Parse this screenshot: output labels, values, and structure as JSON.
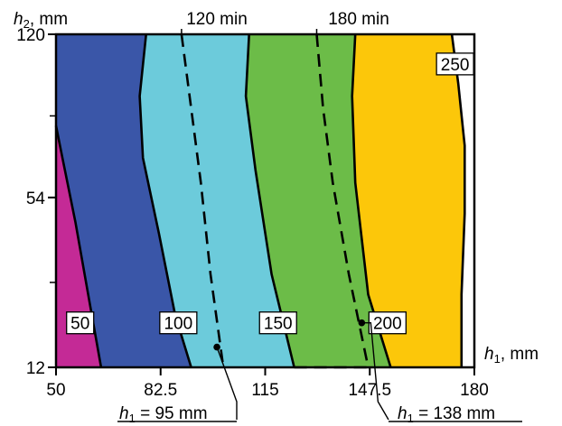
{
  "chart_data": {
    "type": "contour",
    "xlabel": {
      "var": "h",
      "sub": "1",
      "unit": ", mm"
    },
    "ylabel": {
      "var": "h",
      "sub": "2",
      "unit": ", mm"
    },
    "xlim": [
      50,
      180
    ],
    "ylim": [
      12,
      120
    ],
    "x_ticks": [
      50,
      82.5,
      115,
      147.5,
      180
    ],
    "x_tick_labels": [
      "50",
      "82.5",
      "115",
      "147.5",
      "180"
    ],
    "y_ticks": [
      12,
      54,
      120
    ],
    "y_tick_labels": [
      "12",
      "54",
      "120"
    ],
    "y_minor_ticks": [
      33,
      87
    ],
    "regions": [
      {
        "name": "<50",
        "color": "#c42a96"
      },
      {
        "name": "50-100",
        "color": "#3a56a8"
      },
      {
        "name": "100-150",
        "color": "#6ccbdb"
      },
      {
        "name": "150-200",
        "color": "#6cbc48"
      },
      {
        "name": "200-250",
        "color": "#fcc70a"
      },
      {
        "name": ">250",
        "color": "#ffffff"
      }
    ],
    "contours": [
      {
        "level": "50",
        "label": "50",
        "label_at": [
          57.5,
          23
        ],
        "points": [
          [
            50,
            83
          ],
          [
            52,
            70
          ],
          [
            56,
            48
          ],
          [
            60,
            30
          ],
          [
            64,
            12
          ]
        ]
      },
      {
        "level": "100",
        "label": "100",
        "label_at": [
          88,
          23
        ],
        "points": [
          [
            78,
            120
          ],
          [
            76,
            95
          ],
          [
            77,
            70
          ],
          [
            82,
            45
          ],
          [
            87,
            25
          ],
          [
            92,
            12
          ]
        ]
      },
      {
        "level": "150",
        "label": "150",
        "label_at": [
          119,
          23
        ],
        "points": [
          [
            110,
            120
          ],
          [
            109,
            95
          ],
          [
            112,
            65
          ],
          [
            117,
            35
          ],
          [
            124,
            12
          ]
        ]
      },
      {
        "level": "200",
        "label": "200",
        "label_at": [
          153,
          23
        ],
        "points": [
          [
            143,
            120
          ],
          [
            142,
            95
          ],
          [
            143,
            60
          ],
          [
            147,
            30
          ],
          [
            154,
            12
          ]
        ]
      },
      {
        "level": "250",
        "label": "250",
        "label_at": [
          174,
          108
        ],
        "points": [
          [
            173,
            120
          ],
          [
            175,
            100
          ],
          [
            177,
            75
          ],
          [
            177,
            50
          ],
          [
            176,
            30
          ],
          [
            176,
            12
          ]
        ]
      }
    ],
    "dashed_lines": [
      {
        "label": "120 min",
        "points": [
          [
            89,
            120
          ],
          [
            92,
            90
          ],
          [
            95,
            60
          ],
          [
            98,
            35
          ],
          [
            102,
            12
          ]
        ]
      },
      {
        "label": "180 min",
        "points": [
          [
            131,
            120
          ],
          [
            133,
            90
          ],
          [
            136,
            60
          ],
          [
            141,
            35
          ],
          [
            147,
            12
          ]
        ]
      },
      {
        "label": "",
        "points": [
          [
            124,
            12
          ],
          [
            147,
            12
          ]
        ]
      }
    ],
    "markers": [
      {
        "x": 100,
        "y": 17,
        "label": "h1 = 95 mm",
        "callout": {
          "var": "h",
          "sub": "1",
          "text": " = 95 mm"
        }
      },
      {
        "x": 145,
        "y": 23,
        "label": "h1 = 138 mm",
        "callout": {
          "var": "h",
          "sub": "1",
          "text": " = 138 mm"
        }
      }
    ]
  }
}
